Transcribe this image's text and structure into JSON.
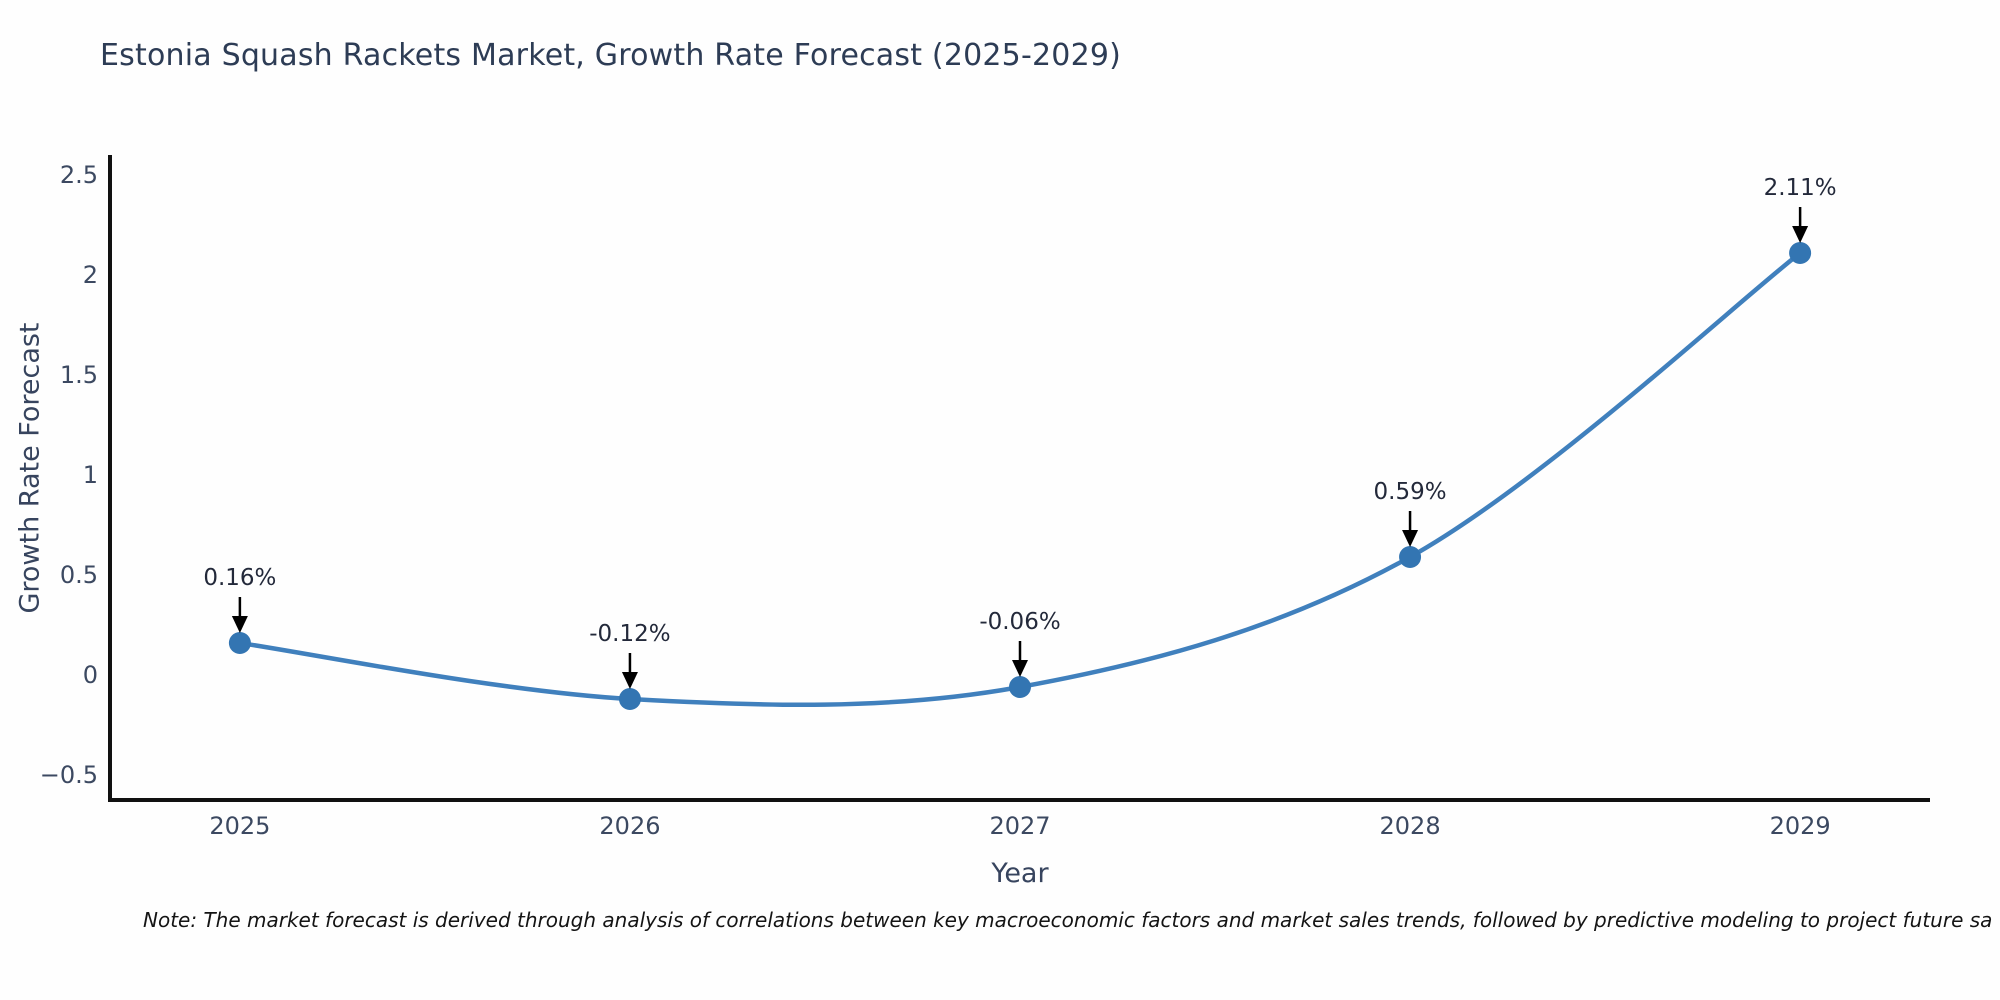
{
  "title": "Estonia Squash Rackets Market, Growth Rate Forecast (2025-2029)",
  "footnote": "Note: The market forecast is derived through analysis of correlations between key macroeconomic factors and market sales trends, followed by predictive modeling to project future sa",
  "chart_data": {
    "type": "line",
    "title": "Estonia Squash Rackets Market, Growth Rate Forecast (2025-2029)",
    "xlabel": "Year",
    "ylabel": "Growth Rate Forecast",
    "categories": [
      "2025",
      "2026",
      "2027",
      "2028",
      "2029"
    ],
    "x": [
      2025,
      2026,
      2027,
      2028,
      2029
    ],
    "values": [
      0.16,
      -0.12,
      -0.06,
      0.59,
      2.11
    ],
    "point_labels": [
      "0.16%",
      "-0.12%",
      "-0.06%",
      "0.59%",
      "2.11%"
    ],
    "yticks": [
      -0.5,
      0,
      0.5,
      1,
      1.5,
      2,
      2.5
    ],
    "ytick_labels": [
      "−0.5",
      "0",
      "0.5",
      "1",
      "1.5",
      "2",
      "2.5"
    ],
    "xlim": [
      2024.667,
      2029.333
    ],
    "ylim": [
      -0.625,
      2.6
    ],
    "grid": false,
    "legend": null,
    "smooth": true,
    "colors": {
      "line": "#4080bd",
      "marker": "#3375b2",
      "axis": "#111111",
      "annotation_arrow": "#000000",
      "title_text": "#2d3c55",
      "tick_text": "#3c4961",
      "note_text": "#141414"
    }
  }
}
